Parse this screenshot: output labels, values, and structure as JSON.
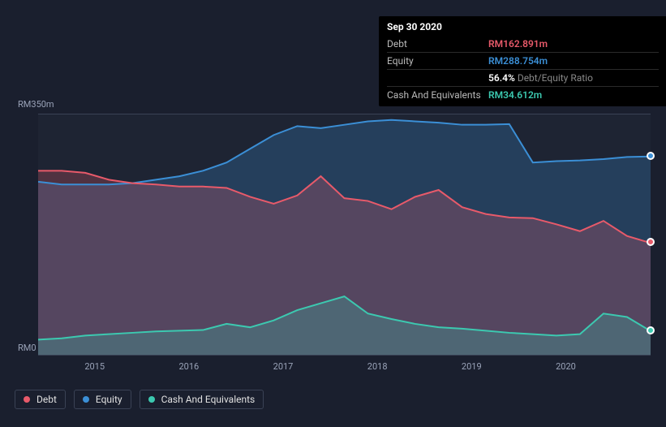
{
  "chart": {
    "type": "area",
    "background_color": "#1a1f2e",
    "plot_background_color": "#1e2433",
    "grid_color": "#3a4255",
    "ylim": [
      0,
      350
    ],
    "y_unit_prefix": "RM",
    "y_unit_suffix": "m",
    "y_ticks": [
      0,
      350
    ],
    "x_years": [
      2015,
      2016,
      2017,
      2018,
      2019,
      2020
    ],
    "x_start": 2014.4,
    "x_end": 2020.9,
    "tick_fontsize": 11,
    "tick_color": "#9aa3b8",
    "series": [
      {
        "key": "debt",
        "label": "Debt",
        "color": "#e85a6a",
        "fill_color": "#e85a6a",
        "y": [
          268,
          268,
          265,
          255,
          250,
          248,
          245,
          245,
          243,
          230,
          220,
          232,
          260,
          228,
          224,
          212,
          230,
          240,
          215,
          205,
          200,
          199,
          190,
          180,
          195,
          173,
          162.891
        ]
      },
      {
        "key": "equity",
        "label": "Equity",
        "color": "#3b8fd6",
        "fill_color": "#3b8fd6",
        "y": [
          252,
          248,
          248,
          248,
          250,
          255,
          260,
          268,
          280,
          300,
          320,
          333,
          330,
          335,
          340,
          342,
          340,
          338,
          335,
          335,
          336,
          280,
          282,
          283,
          285,
          288,
          288.754
        ]
      },
      {
        "key": "cash",
        "label": "Cash And Equivalents",
        "color": "#3cc9b0",
        "fill_color": "#3cc9b0",
        "y": [
          22,
          24,
          28,
          30,
          32,
          34,
          35,
          36,
          45,
          40,
          50,
          65,
          75,
          85,
          60,
          52,
          45,
          40,
          38,
          35,
          32,
          30,
          28,
          30,
          60,
          55,
          34.612
        ]
      }
    ],
    "legend_border_color": "#3a4255"
  },
  "tooltip": {
    "date": "Sep 30 2020",
    "rows": [
      {
        "key": "Debt",
        "value": "RM162.891m",
        "color": "#e85a6a"
      },
      {
        "key": "Equity",
        "value": "RM288.754m",
        "color": "#3b8fd6"
      },
      {
        "key": "",
        "value": "56.4%",
        "suffix": "Debt/Equity Ratio",
        "color": "#ffffff",
        "suffix_color": "#888"
      },
      {
        "key": "Cash And Equivalents",
        "value": "RM34.612m",
        "color": "#3cc9b0"
      }
    ]
  }
}
